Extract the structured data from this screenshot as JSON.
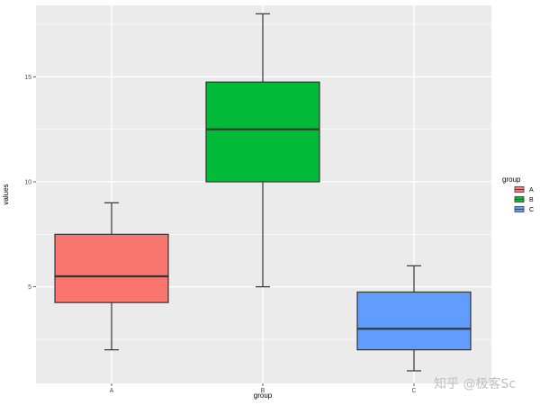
{
  "chart_data": {
    "type": "box",
    "xlabel": "group",
    "ylabel": "values",
    "ylim": [
      0.4,
      18.4
    ],
    "y_ticks": [
      5,
      10,
      15
    ],
    "y_tick_labels": [
      "5",
      "10",
      "15"
    ],
    "grid": true,
    "legend": {
      "title": "group",
      "position": "right",
      "entries": [
        "A",
        "B",
        "C"
      ]
    },
    "categories": [
      "A",
      "B",
      "C"
    ],
    "series": [
      {
        "name": "A",
        "color": "#f8766d",
        "min": 2,
        "q1": 4.25,
        "median": 5.5,
        "q3": 7.5,
        "max": 9
      },
      {
        "name": "B",
        "color": "#00ba38",
        "min": 5,
        "q1": 10,
        "median": 12.5,
        "q3": 14.75,
        "max": 18
      },
      {
        "name": "C",
        "color": "#619cff",
        "min": 1,
        "q1": 2,
        "median": 3,
        "q3": 4.75,
        "max": 6
      }
    ],
    "panel_background": "#ebebeb",
    "grid_color": "#ffffff"
  },
  "watermark": {
    "text": "知乎 @极客Sc"
  }
}
